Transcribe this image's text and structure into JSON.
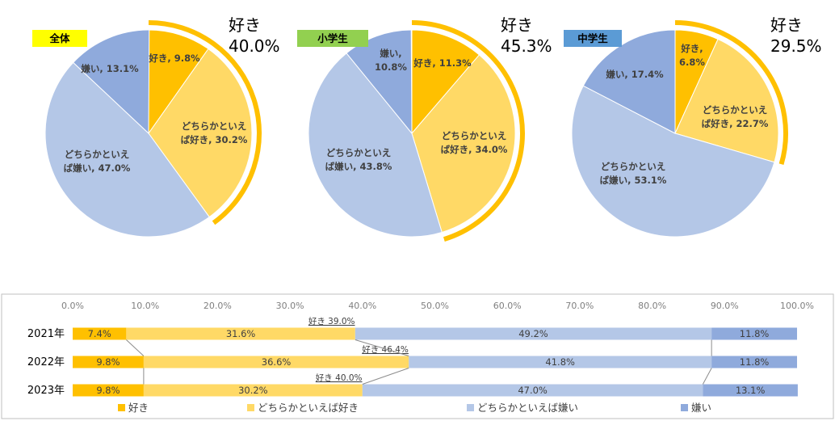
{
  "colors": {
    "like": "#FFC000",
    "somewhat_like": "#FFD966",
    "somewhat_dislike": "#B4C7E7",
    "dislike": "#8FAADC",
    "badge_all": "#FFFF00",
    "badge_elementary": "#92D050",
    "badge_junior": "#5B9BD5"
  },
  "chart_data": [
    {
      "type": "pie",
      "badge": "全体",
      "total_label_top": "好き",
      "total_label_value": "40.0%",
      "slices": [
        {
          "name": "好き",
          "value": 9.8,
          "label_lines": [
            "好き, 9.8%"
          ]
        },
        {
          "name": "どちらかといえば好き",
          "value": 30.2,
          "label_lines": [
            "どちらかといえ",
            "ば好き, 30.2%"
          ]
        },
        {
          "name": "どちらかといえば嫌い",
          "value": 47.0,
          "label_lines": [
            "どちらかといえ",
            "ば嫌い, 47.0%"
          ]
        },
        {
          "name": "嫌い",
          "value": 13.1,
          "label_lines": [
            "嫌い, 13.1%"
          ]
        }
      ]
    },
    {
      "type": "pie",
      "badge": "小学生",
      "total_label_top": "好き",
      "total_label_value": "45.3%",
      "slices": [
        {
          "name": "好き",
          "value": 11.3,
          "label_lines": [
            "好き, 11.3%"
          ]
        },
        {
          "name": "どちらかといえば好き",
          "value": 34.0,
          "label_lines": [
            "どちらかといえ",
            "ば好き, 34.0%"
          ]
        },
        {
          "name": "どちらかといえば嫌い",
          "value": 43.8,
          "label_lines": [
            "どちらかといえ",
            "ば嫌い, 43.8%"
          ]
        },
        {
          "name": "嫌い",
          "value": 10.8,
          "label_lines": [
            "嫌い,",
            "10.8%"
          ]
        }
      ]
    },
    {
      "type": "pie",
      "badge": "中学生",
      "total_label_top": "好き",
      "total_label_value": "29.5%",
      "slices": [
        {
          "name": "好き",
          "value": 6.8,
          "label_lines": [
            "好き,",
            "6.8%"
          ]
        },
        {
          "name": "どちらかといえば好き",
          "value": 22.7,
          "label_lines": [
            "どちらかといえ",
            "ば好き, 22.7%"
          ]
        },
        {
          "name": "どちらかといえば嫌い",
          "value": 53.1,
          "label_lines": [
            "どちらかといえ",
            "ば嫌い, 53.1%"
          ]
        },
        {
          "name": "嫌い",
          "value": 17.4,
          "label_lines": [
            "嫌い, 17.4%"
          ]
        }
      ]
    },
    {
      "type": "bar",
      "orientation": "horizontal",
      "stacked": true,
      "categories": [
        "2021年",
        "2022年",
        "2023年"
      ],
      "xlim": [
        0,
        100
      ],
      "x_ticks": [
        "0.0%",
        "10.0%",
        "20.0%",
        "30.0%",
        "40.0%",
        "50.0%",
        "60.0%",
        "70.0%",
        "80.0%",
        "90.0%",
        "100.0%"
      ],
      "series": [
        {
          "name": "好き",
          "values": [
            7.4,
            9.8,
            9.8
          ],
          "labels": [
            "7.4%",
            "9.8%",
            "9.8%"
          ]
        },
        {
          "name": "どちらかといえば好き",
          "values": [
            31.6,
            36.6,
            30.2
          ],
          "labels": [
            "31.6%",
            "36.6%",
            "30.2%"
          ]
        },
        {
          "name": "どちらかといえば嫌い",
          "values": [
            49.2,
            41.8,
            47.0
          ],
          "labels": [
            "49.2%",
            "41.8%",
            "47.0%"
          ]
        },
        {
          "name": "嫌い",
          "values": [
            11.8,
            11.8,
            13.1
          ],
          "labels": [
            "11.8%",
            "11.8%",
            "13.1%"
          ]
        }
      ],
      "like_totals": [
        "好き 39.0%",
        "好き 46.4%",
        "好き 40.0%"
      ],
      "legend": [
        "好き",
        "どちらかといえば好き",
        "どちらかといえば嫌い",
        "嫌い"
      ],
      "legend_position": "bottom"
    }
  ]
}
